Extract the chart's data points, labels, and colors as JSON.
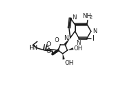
{
  "bg": "#ffffff",
  "lc": "#1a1a1a",
  "fs": 6.2,
  "lw": 1.1,
  "figsize": [
    1.65,
    1.35
  ],
  "dpi": 100,
  "xlim": [
    -0.05,
    1.05
  ],
  "ylim": [
    -0.05,
    1.05
  ]
}
